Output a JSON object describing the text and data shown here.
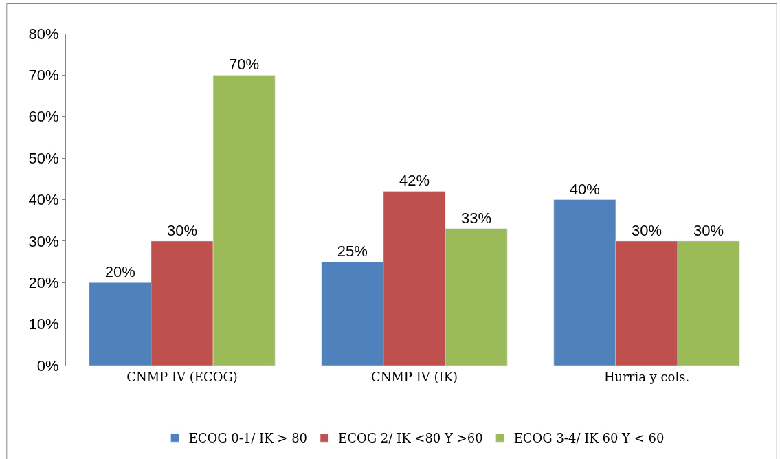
{
  "chart_data": {
    "type": "bar",
    "categories": [
      "CNMP IV (ECOG)",
      "CNMP IV (IK)",
      "Hurria y cols."
    ],
    "series": [
      {
        "name": "ECOG 0-1/ IK > 80",
        "color": "#4f81bd",
        "values": [
          20,
          25,
          40
        ],
        "value_labels": [
          "20%",
          "25%",
          "40%"
        ]
      },
      {
        "name": "ECOG 2/ IK <80 Y >60",
        "color": "#c0504d",
        "values": [
          30,
          42,
          30
        ],
        "value_labels": [
          "30%",
          "42%",
          "30%"
        ]
      },
      {
        "name": "ECOG 3-4/ IK 60 Y < 60",
        "color": "#9bbb59",
        "values": [
          70,
          33,
          30
        ],
        "value_labels": [
          "70%",
          "33%",
          "30%"
        ]
      }
    ],
    "ylim": [
      0,
      80
    ],
    "yticks": [
      {
        "value": 0,
        "label": "0%"
      },
      {
        "value": 10,
        "label": "10%"
      },
      {
        "value": 20,
        "label": "20%"
      },
      {
        "value": 30,
        "label": "30%"
      },
      {
        "value": 40,
        "label": "40%"
      },
      {
        "value": 50,
        "label": "50%"
      },
      {
        "value": 60,
        "label": "60%"
      },
      {
        "value": 70,
        "label": "70%"
      },
      {
        "value": 80,
        "label": "80%"
      }
    ],
    "legend": "bottom"
  }
}
